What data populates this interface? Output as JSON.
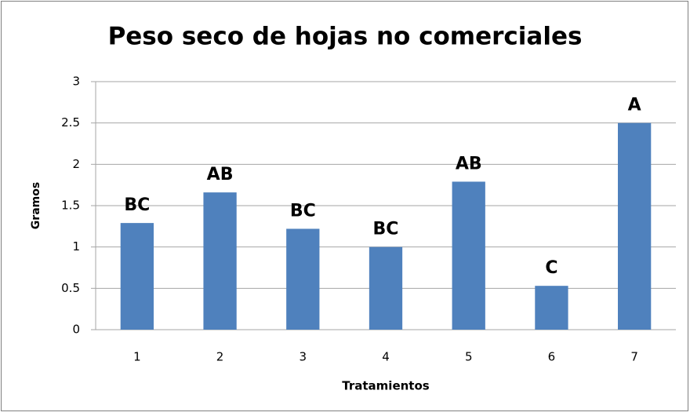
{
  "chart_data": {
    "type": "bar",
    "title": "Peso seco de hojas no comerciales",
    "x_label": "Tratamientos",
    "y_label": "Gramos",
    "categories": [
      "1",
      "2",
      "3",
      "4",
      "5",
      "6",
      "7"
    ],
    "values": [
      1.29,
      1.66,
      1.22,
      1.0,
      1.79,
      0.53,
      2.5
    ],
    "annotations": [
      "BC",
      "AB",
      "BC",
      "BC",
      "AB",
      "C",
      "A"
    ],
    "color": "#4f81bd",
    "ylim": [
      0,
      3
    ],
    "yticks": [
      0,
      0.5,
      1,
      1.5,
      2,
      2.5,
      3
    ],
    "grid": true
  }
}
